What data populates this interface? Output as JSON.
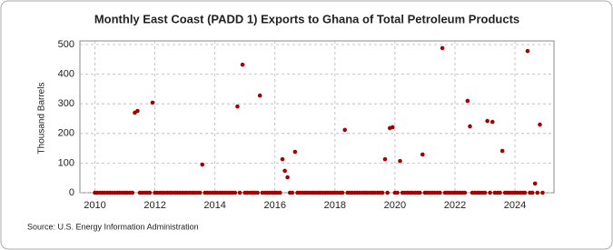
{
  "chart_data": {
    "type": "scatter",
    "title": "Monthly East Coast (PADD 1) Exports to Ghana of Total Petroleum Products",
    "y_label": "Thousand Barrels",
    "source": "Source: U.S. Energy Information Administration",
    "x": [
      2010.0,
      2010.08,
      2010.17,
      2010.25,
      2010.33,
      2010.42,
      2010.5,
      2010.58,
      2010.67,
      2010.75,
      2010.83,
      2010.92,
      2011.0,
      2011.08,
      2011.17,
      2011.25,
      2011.33,
      2011.42,
      2011.5,
      2011.58,
      2011.67,
      2011.75,
      2011.83,
      2011.92,
      2012.0,
      2012.08,
      2012.17,
      2012.25,
      2012.33,
      2012.42,
      2012.5,
      2012.58,
      2012.67,
      2012.75,
      2012.83,
      2012.92,
      2013.0,
      2013.08,
      2013.17,
      2013.25,
      2013.33,
      2013.42,
      2013.5,
      2013.58,
      2013.67,
      2013.75,
      2013.83,
      2013.92,
      2014.0,
      2014.08,
      2014.17,
      2014.25,
      2014.33,
      2014.42,
      2014.5,
      2014.58,
      2014.67,
      2014.75,
      2014.83,
      2014.92,
      2015.0,
      2015.08,
      2015.17,
      2015.25,
      2015.33,
      2015.42,
      2015.5,
      2015.58,
      2015.67,
      2015.75,
      2015.83,
      2015.92,
      2016.0,
      2016.08,
      2016.17,
      2016.25,
      2016.33,
      2016.42,
      2016.5,
      2016.58,
      2016.67,
      2016.75,
      2016.83,
      2016.92,
      2017.0,
      2017.08,
      2017.17,
      2017.25,
      2017.33,
      2017.42,
      2017.5,
      2017.58,
      2017.67,
      2017.75,
      2017.83,
      2017.92,
      2018.0,
      2018.08,
      2018.17,
      2018.25,
      2018.33,
      2018.42,
      2018.5,
      2018.58,
      2018.67,
      2018.75,
      2018.83,
      2018.92,
      2019.0,
      2019.08,
      2019.17,
      2019.25,
      2019.33,
      2019.42,
      2019.5,
      2019.58,
      2019.67,
      2019.75,
      2019.83,
      2019.92,
      2020.0,
      2020.08,
      2020.17,
      2020.25,
      2020.33,
      2020.42,
      2020.5,
      2020.58,
      2020.67,
      2020.75,
      2020.83,
      2020.92,
      2021.0,
      2021.08,
      2021.17,
      2021.25,
      2021.33,
      2021.42,
      2021.5,
      2021.58,
      2021.67,
      2021.75,
      2021.83,
      2021.92,
      2022.0,
      2022.08,
      2022.17,
      2022.25,
      2022.33,
      2022.42,
      2022.5,
      2022.58,
      2022.67,
      2022.75,
      2022.83,
      2022.92,
      2023.0,
      2023.08,
      2023.17,
      2023.25,
      2023.33,
      2023.42,
      2023.5,
      2023.58,
      2023.67,
      2023.75,
      2023.83,
      2023.92,
      2024.0,
      2024.08,
      2024.17,
      2024.25,
      2024.33,
      2024.42,
      2024.5,
      2024.58,
      2024.67,
      2024.75,
      2024.83,
      2024.92
    ],
    "series": [
      {
        "color": "#a50000",
        "values": [
          0,
          0,
          0,
          0,
          0,
          0,
          0,
          0,
          0,
          0,
          0,
          0,
          0,
          0,
          0,
          0,
          270,
          276,
          0,
          0,
          0,
          0,
          0,
          304,
          0,
          0,
          0,
          0,
          0,
          0,
          0,
          0,
          0,
          0,
          0,
          0,
          0,
          0,
          0,
          0,
          0,
          0,
          0,
          95,
          0,
          0,
          0,
          0,
          0,
          0,
          0,
          0,
          0,
          0,
          0,
          0,
          0,
          291,
          0,
          432,
          0,
          0,
          0,
          0,
          0,
          0,
          328,
          0,
          0,
          0,
          0,
          0,
          0,
          0,
          0,
          113,
          74,
          52,
          0,
          0,
          138,
          0,
          0,
          0,
          0,
          0,
          0,
          0,
          0,
          0,
          0,
          0,
          0,
          0,
          0,
          0,
          0,
          0,
          0,
          0,
          212,
          0,
          0,
          0,
          0,
          0,
          0,
          0,
          0,
          0,
          0,
          0,
          0,
          0,
          0,
          0,
          113,
          0,
          218,
          221,
          0,
          0,
          107,
          0,
          0,
          0,
          0,
          0,
          0,
          0,
          0,
          129,
          0,
          0,
          0,
          0,
          0,
          0,
          0,
          488,
          0,
          0,
          0,
          0,
          0,
          0,
          0,
          0,
          0,
          310,
          224,
          0,
          0,
          0,
          0,
          0,
          0,
          242,
          0,
          239,
          0,
          0,
          0,
          141,
          0,
          0,
          0,
          0,
          0,
          0,
          0,
          0,
          0,
          478,
          0,
          0,
          31,
          0,
          230,
          0
        ]
      }
    ],
    "xlim": [
      2009.5,
      2025.3
    ],
    "xticks": [
      2010,
      2012,
      2014,
      2016,
      2018,
      2020,
      2022,
      2024
    ],
    "ylim": [
      0,
      500
    ],
    "yticks": [
      0,
      100,
      200,
      300,
      400,
      500
    ],
    "grid": true
  }
}
